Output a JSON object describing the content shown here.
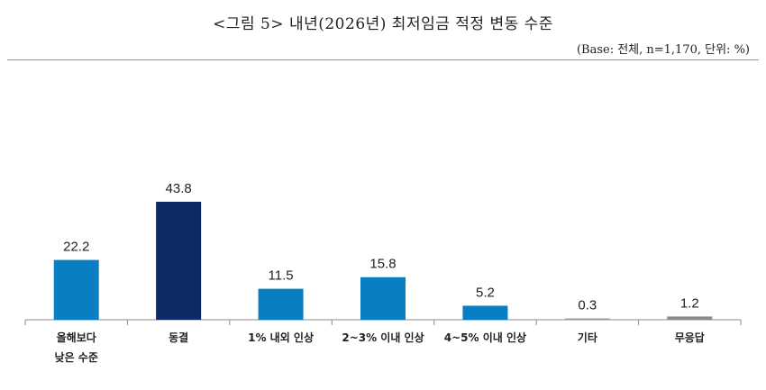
{
  "header": {
    "title": "<그림 5> 내년(2026년) 최저임금 적정 변동 수준",
    "subtitle": "(Base: 전체, n=1,170, 단위: %)"
  },
  "chart_data": {
    "type": "bar",
    "categories": [
      [
        "올해보다",
        "낮은 수준"
      ],
      [
        "동결"
      ],
      [
        "1% 내외 인상"
      ],
      [
        "2~3% 이내 인상"
      ],
      [
        "4~5% 이내 인상"
      ],
      [
        "기타"
      ],
      [
        "무응답"
      ]
    ],
    "values": [
      22.2,
      43.8,
      11.5,
      15.8,
      5.2,
      0.3,
      1.2
    ],
    "value_labels": [
      "22.2",
      "43.8",
      "11.5",
      "15.8",
      "5.2",
      "0.3",
      "1.2"
    ],
    "colors": [
      "#0a7ec2",
      "#0c2b63",
      "#0a7ec2",
      "#0a7ec2",
      "#0a7ec2",
      "#9a9a9a",
      "#8a8a8a"
    ],
    "ylim": [
      0,
      50
    ],
    "grid": false,
    "legend": "none"
  }
}
